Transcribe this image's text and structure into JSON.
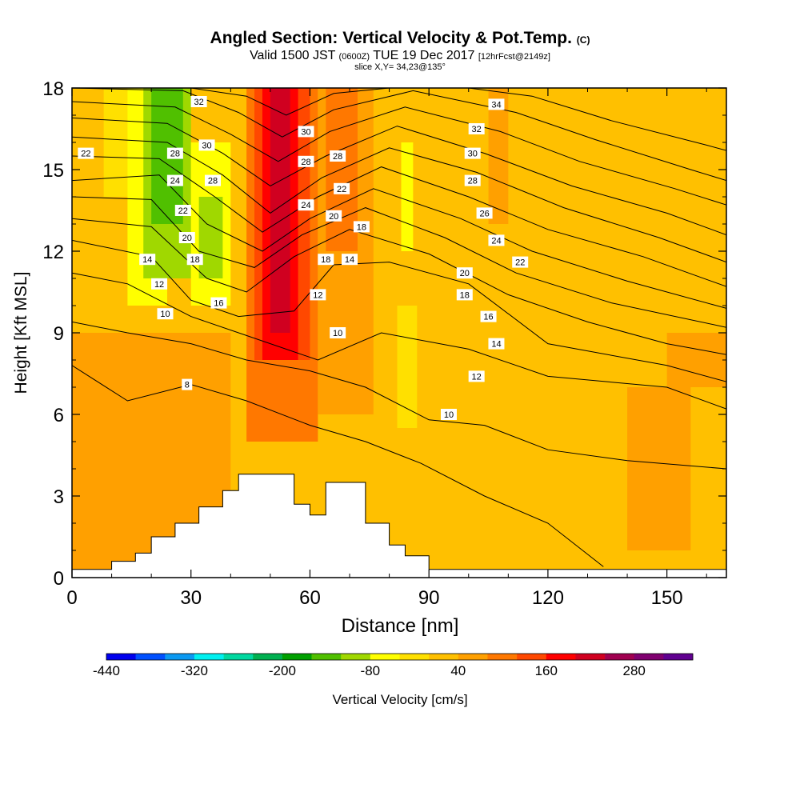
{
  "title": {
    "main": "Angled Section: Vertical Velocity & Pot.Temp.",
    "main_unit": "(C)",
    "valid_prefix": "Valid 1500 JST",
    "valid_utc": "(0600Z)",
    "valid_date": "TUE 19 Dec 2017",
    "forecast": "[12hrFcst@2149z]",
    "slice": "slice X,Y= 34,23@135°"
  },
  "chart_data": {
    "type": "heatmap",
    "xlabel": "Distance [nm]",
    "ylabel": "Height [Kft MSL]",
    "xlim": [
      0,
      165
    ],
    "ylim": [
      0,
      18
    ],
    "x_ticks": [
      0,
      30,
      60,
      90,
      120,
      150
    ],
    "y_ticks": [
      0,
      3,
      6,
      9,
      12,
      15,
      18
    ],
    "colorbar": {
      "label": "Vertical Velocity [cm/s]",
      "min": -440,
      "step": 40,
      "tick_labels": [
        "-440",
        "-320",
        "-200",
        "-80",
        "40",
        "160",
        "280"
      ],
      "colors": [
        "#0000ee",
        "#0050ff",
        "#0a99f2",
        "#00f0f0",
        "#00d8a0",
        "#00b050",
        "#00a000",
        "#50c000",
        "#a0d800",
        "#ffff00",
        "#ffe000",
        "#ffc000",
        "#ffa000",
        "#ff7800",
        "#ff4800",
        "#ff0000",
        "#d00020",
        "#a00050",
        "#800070",
        "#600090"
      ]
    },
    "vertical_velocity_cells": [
      {
        "x": [
          0,
          165
        ],
        "y": [
          0,
          18
        ],
        "value": 20
      },
      {
        "x": [
          0,
          40
        ],
        "y": [
          0,
          9
        ],
        "value": 40
      },
      {
        "x": [
          8,
          16
        ],
        "y": [
          14,
          18
        ],
        "value": -40
      },
      {
        "x": [
          14,
          24
        ],
        "y": [
          10,
          18
        ],
        "value": -80
      },
      {
        "x": [
          18,
          30
        ],
        "y": [
          11,
          18
        ],
        "value": -120
      },
      {
        "x": [
          20,
          28
        ],
        "y": [
          13,
          18
        ],
        "value": -160
      },
      {
        "x": [
          30,
          40
        ],
        "y": [
          10,
          16
        ],
        "value": -80
      },
      {
        "x": [
          32,
          38
        ],
        "y": [
          11,
          14
        ],
        "value": -120
      },
      {
        "x": [
          44,
          62
        ],
        "y": [
          5,
          18
        ],
        "value": 80
      },
      {
        "x": [
          46,
          60
        ],
        "y": [
          8,
          18
        ],
        "value": 120
      },
      {
        "x": [
          48,
          57
        ],
        "y": [
          8,
          18
        ],
        "value": 160
      },
      {
        "x": [
          50,
          55
        ],
        "y": [
          9,
          18
        ],
        "value": 200
      },
      {
        "x": [
          62,
          76
        ],
        "y": [
          6,
          18
        ],
        "value": 60
      },
      {
        "x": [
          64,
          72
        ],
        "y": [
          12,
          18
        ],
        "value": 80
      },
      {
        "x": [
          82,
          87
        ],
        "y": [
          5.5,
          10
        ],
        "value": -40
      },
      {
        "x": [
          83,
          86
        ],
        "y": [
          12,
          16
        ],
        "value": -80
      },
      {
        "x": [
          105,
          110
        ],
        "y": [
          13,
          18
        ],
        "value": 40
      },
      {
        "x": [
          140,
          156
        ],
        "y": [
          1,
          7
        ],
        "value": 40
      },
      {
        "x": [
          150,
          165
        ],
        "y": [
          7,
          9
        ],
        "value": 60
      }
    ],
    "terrain": [
      {
        "x": 0,
        "y": 0.3
      },
      {
        "x": 10,
        "y": 0.6
      },
      {
        "x": 16,
        "y": 0.9
      },
      {
        "x": 20,
        "y": 1.5
      },
      {
        "x": 26,
        "y": 2.0
      },
      {
        "x": 32,
        "y": 2.6
      },
      {
        "x": 38,
        "y": 3.2
      },
      {
        "x": 42,
        "y": 3.8
      },
      {
        "x": 52,
        "y": 3.8
      },
      {
        "x": 56,
        "y": 2.7
      },
      {
        "x": 60,
        "y": 2.3
      },
      {
        "x": 64,
        "y": 3.5
      },
      {
        "x": 70,
        "y": 3.5
      },
      {
        "x": 74,
        "y": 2.0
      },
      {
        "x": 80,
        "y": 1.2
      },
      {
        "x": 84,
        "y": 0.8
      },
      {
        "x": 90,
        "y": 0.3
      },
      {
        "x": 165,
        "y": 0.3
      }
    ],
    "theta_contours": [
      {
        "value": 8,
        "label": "8",
        "points": [
          [
            0,
            7.8
          ],
          [
            14,
            6.5
          ],
          [
            30,
            7.1
          ],
          [
            44,
            6.5
          ],
          [
            60,
            5.6
          ],
          [
            74,
            5.0
          ],
          [
            88,
            4.2
          ],
          [
            104,
            3.0
          ],
          [
            120,
            2.0
          ],
          [
            134,
            0.4
          ]
        ]
      },
      {
        "value": 10,
        "label": "10",
        "points": [
          [
            0,
            9.4
          ],
          [
            14,
            9.0
          ],
          [
            30,
            8.6
          ],
          [
            44,
            8.0
          ],
          [
            60,
            7.6
          ],
          [
            74,
            7.0
          ],
          [
            90,
            5.8
          ],
          [
            104,
            5.6
          ],
          [
            120,
            4.7
          ],
          [
            140,
            4.3
          ],
          [
            165,
            4.0
          ]
        ]
      },
      {
        "value": 12,
        "label": "12",
        "points": [
          [
            0,
            11.2
          ],
          [
            14,
            10.8
          ],
          [
            30,
            9.6
          ],
          [
            44,
            8.9
          ],
          [
            62,
            8.0
          ],
          [
            78,
            9.0
          ],
          [
            100,
            8.4
          ],
          [
            120,
            7.4
          ],
          [
            150,
            7.0
          ],
          [
            165,
            6.2
          ]
        ]
      },
      {
        "value": 14,
        "label": "14",
        "points": [
          [
            0,
            12.4
          ],
          [
            20,
            11.8
          ],
          [
            30,
            10.2
          ],
          [
            42,
            9.6
          ],
          [
            56,
            9.8
          ],
          [
            66,
            11.5
          ],
          [
            80,
            11.6
          ],
          [
            100,
            10.8
          ],
          [
            120,
            8.6
          ],
          [
            150,
            7.8
          ],
          [
            165,
            7.2
          ]
        ]
      },
      {
        "value": 16,
        "label": "16",
        "points": [
          [
            0,
            13.2
          ],
          [
            20,
            12.9
          ],
          [
            34,
            11.0
          ],
          [
            44,
            10.5
          ],
          [
            56,
            11.8
          ],
          [
            70,
            12.8
          ],
          [
            90,
            11.9
          ],
          [
            110,
            10.4
          ],
          [
            130,
            9.4
          ],
          [
            150,
            8.6
          ],
          [
            165,
            8.2
          ]
        ]
      },
      {
        "value": 18,
        "label": "18",
        "points": [
          [
            0,
            14.0
          ],
          [
            20,
            13.9
          ],
          [
            32,
            12.0
          ],
          [
            46,
            11.4
          ],
          [
            58,
            12.6
          ],
          [
            74,
            13.6
          ],
          [
            94,
            12.5
          ],
          [
            112,
            11.2
          ],
          [
            136,
            10.1
          ],
          [
            165,
            9.2
          ]
        ]
      },
      {
        "value": 20,
        "label": "20",
        "points": [
          [
            0,
            14.6
          ],
          [
            22,
            14.8
          ],
          [
            34,
            13.0
          ],
          [
            48,
            12.0
          ],
          [
            60,
            13.2
          ],
          [
            76,
            14.3
          ],
          [
            98,
            13.2
          ],
          [
            116,
            12.0
          ],
          [
            140,
            10.9
          ],
          [
            165,
            9.9
          ]
        ]
      },
      {
        "value": 22,
        "label": "22",
        "points": [
          [
            0,
            15.5
          ],
          [
            22,
            15.4
          ],
          [
            36,
            14.0
          ],
          [
            48,
            12.7
          ],
          [
            62,
            14.0
          ],
          [
            78,
            15.1
          ],
          [
            100,
            14.0
          ],
          [
            120,
            12.8
          ],
          [
            144,
            11.8
          ],
          [
            165,
            10.7
          ]
        ]
      },
      {
        "value": 24,
        "label": "24",
        "points": [
          [
            0,
            16.2
          ],
          [
            24,
            16.0
          ],
          [
            38,
            14.8
          ],
          [
            50,
            13.4
          ],
          [
            63,
            14.7
          ],
          [
            80,
            15.8
          ],
          [
            102,
            14.9
          ],
          [
            124,
            13.6
          ],
          [
            148,
            12.5
          ],
          [
            165,
            11.6
          ]
        ]
      },
      {
        "value": 26,
        "label": "26",
        "points": [
          [
            0,
            16.9
          ],
          [
            24,
            16.7
          ],
          [
            38,
            15.6
          ],
          [
            50,
            14.4
          ],
          [
            64,
            15.5
          ],
          [
            82,
            16.6
          ],
          [
            104,
            15.6
          ],
          [
            126,
            14.4
          ],
          [
            150,
            13.4
          ],
          [
            165,
            12.6
          ]
        ]
      },
      {
        "value": 28,
        "label": "28",
        "points": [
          [
            0,
            17.5
          ],
          [
            26,
            17.3
          ],
          [
            40,
            16.3
          ],
          [
            52,
            15.3
          ],
          [
            65,
            16.4
          ],
          [
            84,
            17.3
          ],
          [
            108,
            16.4
          ],
          [
            128,
            15.3
          ],
          [
            152,
            14.3
          ],
          [
            165,
            13.7
          ]
        ]
      },
      {
        "value": 30,
        "label": "30",
        "points": [
          [
            0,
            18
          ],
          [
            28,
            17.9
          ],
          [
            42,
            17.1
          ],
          [
            53,
            16.2
          ],
          [
            66,
            17.2
          ],
          [
            86,
            17.9
          ],
          [
            112,
            17.1
          ],
          [
            132,
            16.1
          ],
          [
            156,
            15.0
          ],
          [
            165,
            14.6
          ]
        ]
      },
      {
        "value": 32,
        "label": "32",
        "points": [
          [
            30,
            18
          ],
          [
            44,
            17.7
          ],
          [
            54,
            17.0
          ],
          [
            66,
            17.8
          ],
          [
            80,
            18
          ]
        ]
      },
      {
        "value": 34,
        "label": "34",
        "points": [
          [
            100,
            18
          ],
          [
            116,
            17.7
          ],
          [
            136,
            16.8
          ],
          [
            160,
            15.9
          ],
          [
            165,
            15.7
          ]
        ]
      }
    ],
    "contour_labels": [
      {
        "text": "22",
        "x": 3.5,
        "y": 15.6
      },
      {
        "text": "32",
        "x": 32,
        "y": 17.5
      },
      {
        "text": "28",
        "x": 26,
        "y": 15.6
      },
      {
        "text": "30",
        "x": 34,
        "y": 15.9
      },
      {
        "text": "24",
        "x": 26,
        "y": 14.6
      },
      {
        "text": "28",
        "x": 35.5,
        "y": 14.6
      },
      {
        "text": "22",
        "x": 28,
        "y": 13.5
      },
      {
        "text": "20",
        "x": 29,
        "y": 12.5
      },
      {
        "text": "18",
        "x": 31,
        "y": 11.7
      },
      {
        "text": "14",
        "x": 19,
        "y": 11.7
      },
      {
        "text": "12",
        "x": 22,
        "y": 10.8
      },
      {
        "text": "10",
        "x": 23.5,
        "y": 9.7
      },
      {
        "text": "16",
        "x": 37,
        "y": 10.1
      },
      {
        "text": "8",
        "x": 29,
        "y": 7.1
      },
      {
        "text": "30",
        "x": 59,
        "y": 16.4
      },
      {
        "text": "28",
        "x": 59,
        "y": 15.3
      },
      {
        "text": "28",
        "x": 67,
        "y": 15.5
      },
      {
        "text": "24",
        "x": 59,
        "y": 13.7
      },
      {
        "text": "22",
        "x": 68,
        "y": 14.3
      },
      {
        "text": "20",
        "x": 66,
        "y": 13.3
      },
      {
        "text": "18",
        "x": 73,
        "y": 12.9
      },
      {
        "text": "18",
        "x": 64,
        "y": 11.7
      },
      {
        "text": "14",
        "x": 70,
        "y": 11.7
      },
      {
        "text": "12",
        "x": 62,
        "y": 10.4
      },
      {
        "text": "10",
        "x": 67,
        "y": 9.0
      },
      {
        "text": "34",
        "x": 107,
        "y": 17.4
      },
      {
        "text": "32",
        "x": 102,
        "y": 16.5
      },
      {
        "text": "30",
        "x": 101,
        "y": 15.6
      },
      {
        "text": "28",
        "x": 101,
        "y": 14.6
      },
      {
        "text": "26",
        "x": 104,
        "y": 13.4
      },
      {
        "text": "24",
        "x": 107,
        "y": 12.4
      },
      {
        "text": "22",
        "x": 113,
        "y": 11.6
      },
      {
        "text": "20",
        "x": 99,
        "y": 11.2
      },
      {
        "text": "18",
        "x": 99,
        "y": 10.4
      },
      {
        "text": "16",
        "x": 105,
        "y": 9.6
      },
      {
        "text": "14",
        "x": 107,
        "y": 8.6
      },
      {
        "text": "12",
        "x": 102,
        "y": 7.4
      },
      {
        "text": "10",
        "x": 95,
        "y": 6.0
      }
    ]
  }
}
